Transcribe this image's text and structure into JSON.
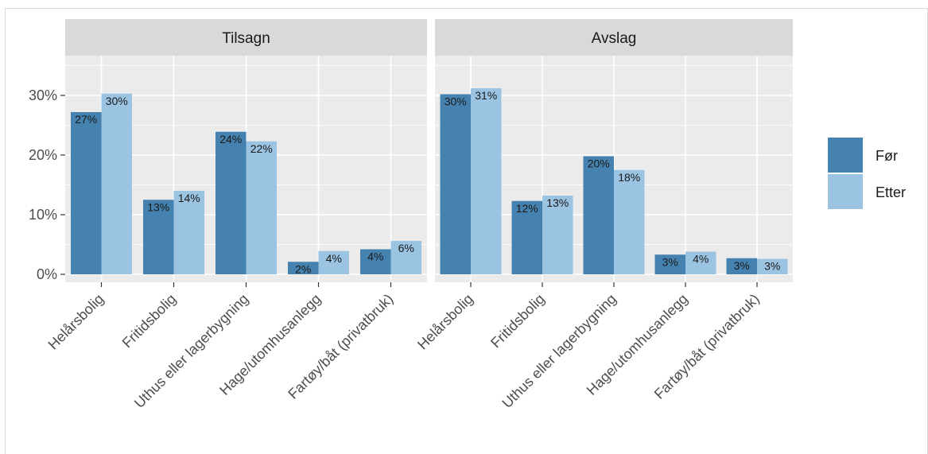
{
  "colors": {
    "series_before": "#4682b0",
    "series_after": "#9bc3e2",
    "panel_bg": "#ebebeb",
    "strip_bg": "#d9d9d9",
    "grid": "#ffffff"
  },
  "chart_data": {
    "type": "bar",
    "layout": "faceted grouped bar",
    "categories": [
      "Helårsbolig",
      "Fritidsbolig",
      "Uthus eller lagerbygning",
      "Hage/utomhusanlegg",
      "Fartøy/båt (privatbruk)"
    ],
    "ylim": [
      0,
      35
    ],
    "y_ticks": [
      0,
      10,
      20,
      30
    ],
    "y_tick_labels": [
      "0%",
      "10%",
      "20%",
      "30%"
    ],
    "grid": true,
    "legend_position": "right",
    "legend": [
      "Før",
      "Etter"
    ],
    "facets": [
      {
        "title": "Tilsagn",
        "series": [
          {
            "name": "Før",
            "values": [
              27.2,
              12.5,
              23.9,
              2.1,
              4.2
            ],
            "labels": [
              "27%",
              "13%",
              "24%",
              "2%",
              "4%"
            ]
          },
          {
            "name": "Etter",
            "values": [
              30.3,
              14.0,
              22.3,
              3.9,
              5.6
            ],
            "labels": [
              "30%",
              "14%",
              "22%",
              "4%",
              "6%"
            ]
          }
        ]
      },
      {
        "title": "Avslag",
        "series": [
          {
            "name": "Før",
            "values": [
              30.2,
              12.3,
              19.8,
              3.3,
              2.7
            ],
            "labels": [
              "30%",
              "12%",
              "20%",
              "3%",
              "3%"
            ]
          },
          {
            "name": "Etter",
            "values": [
              31.2,
              13.2,
              17.5,
              3.8,
              2.6
            ],
            "labels": [
              "31%",
              "13%",
              "18%",
              "4%",
              "3%"
            ]
          }
        ]
      }
    ]
  }
}
